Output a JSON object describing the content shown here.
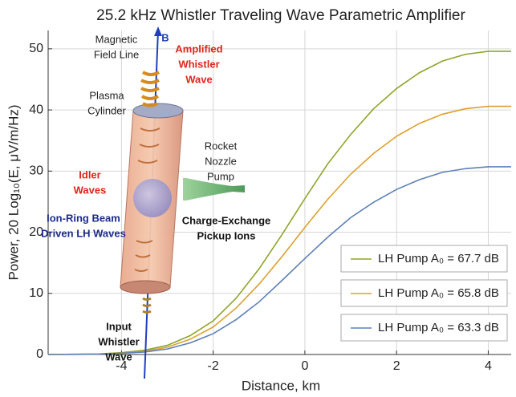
{
  "chart_data": {
    "type": "line",
    "title": "25.2 kHz Whistler Traveling Wave Parametric Amplifier",
    "xlabel": "Distance, km",
    "ylabel": "Power, 20 Log₁₀(E, μV/m/Hz)",
    "x": [
      -5.6,
      -5,
      -4.5,
      -4,
      -3.5,
      -3,
      -2.5,
      -2,
      -1.5,
      -1,
      -0.5,
      0,
      0.5,
      1,
      1.5,
      2,
      2.5,
      3,
      3.5,
      4,
      4.5
    ],
    "series": [
      {
        "name": "LH Pump A₀ = 67.7 dB",
        "color": "#8ea52c",
        "values": [
          0,
          0.05,
          0.1,
          0.3,
          0.7,
          1.5,
          3.1,
          5.5,
          9.2,
          14,
          19.6,
          25.5,
          31.2,
          36,
          40.2,
          43.5,
          46.1,
          48,
          49.1,
          49.6,
          49.6
        ]
      },
      {
        "name": "LH Pump A₀ = 65.8 dB",
        "color": "#dda02c",
        "values": [
          0,
          0.04,
          0.08,
          0.2,
          0.5,
          1.2,
          2.5,
          4.5,
          7.6,
          11.5,
          16,
          20.8,
          25.4,
          29.5,
          32.9,
          35.7,
          37.8,
          39.3,
          40.2,
          40.6,
          40.6
        ]
      },
      {
        "name": "LH Pump A₀ = 63.3 dB",
        "color": "#5d81b8",
        "values": [
          0,
          0.03,
          0.06,
          0.2,
          0.4,
          0.9,
          1.9,
          3.4,
          5.7,
          8.6,
          12.1,
          15.7,
          19.2,
          22.4,
          24.9,
          27,
          28.6,
          29.8,
          30.4,
          30.7,
          30.7
        ]
      }
    ],
    "xlim": [
      -5.6,
      4.5
    ],
    "ylim": [
      0,
      53
    ],
    "xticks": [
      -4,
      -2,
      0,
      2,
      4
    ],
    "yticks": [
      0,
      10,
      20,
      30,
      40,
      50
    ],
    "grid": true,
    "legend": "lower-right",
    "annotations": [
      {
        "lines": [
          "Magnetic",
          "Field Line"
        ],
        "color": "#222222",
        "bold": false
      },
      {
        "lines": [
          "B"
        ],
        "color": "#1f3fbf",
        "bold": true
      },
      {
        "lines": [
          "Amplified",
          "Whistler",
          "Wave"
        ],
        "color": "#e0241b",
        "bold": true
      },
      {
        "lines": [
          "Plasma",
          "Cylinder"
        ],
        "color": "#222222",
        "bold": false
      },
      {
        "lines": [
          "Idler",
          "Waves"
        ],
        "color": "#e0241b",
        "bold": true
      },
      {
        "lines": [
          "Ion-Ring Beam",
          "Driven LH Waves"
        ],
        "color": "#1d2a8c",
        "bold": true
      },
      {
        "lines": [
          "Charge-Exchange",
          "Pickup Ions"
        ],
        "color": "#111111",
        "bold": true
      },
      {
        "lines": [
          "Rocket",
          "Nozzle",
          "Pump"
        ],
        "color": "#222222",
        "bold": false
      },
      {
        "lines": [
          "Input",
          "Whistler",
          "Wave"
        ],
        "color": "#111111",
        "bold": true
      }
    ]
  }
}
